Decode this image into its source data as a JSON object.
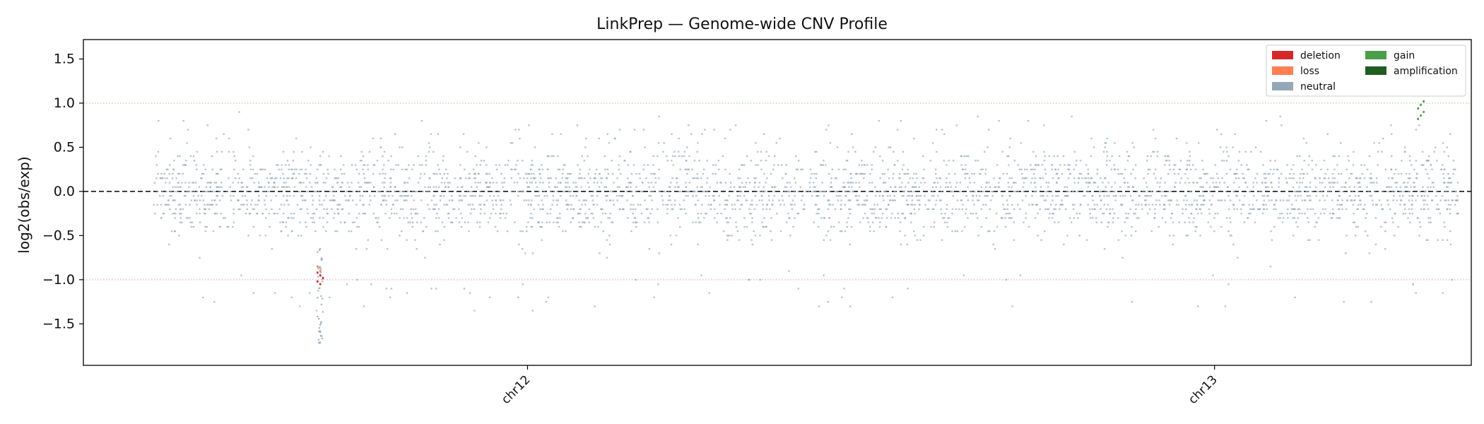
{
  "chart_data": {
    "type": "scatter",
    "title": "LinkPrep — Genome-wide CNV Profile",
    "ylabel": "log2(obs/exp)",
    "xlabel": "",
    "ylim": [
      -1.97,
      1.72
    ],
    "yticks": [
      1.5,
      1.0,
      0.5,
      0.0,
      -0.5,
      -1.0,
      -1.5
    ],
    "ytick_labels": [
      "1.5",
      "1.0",
      "0.5",
      "0.0",
      "−0.5",
      "−1.0",
      "−1.5"
    ],
    "xticks": [
      {
        "label": "chr12",
        "position": 0.32
      },
      {
        "label": "chr13",
        "position": 0.815
      }
    ],
    "reference_lines": [
      {
        "y": 0.0,
        "style": "dashed",
        "color": "#000000"
      },
      {
        "y": 1.0,
        "style": "dotted",
        "color": "#8fd18f"
      },
      {
        "y": -1.0,
        "style": "dotted",
        "color": "#e89999"
      }
    ],
    "grid": false,
    "legend_position": "top-right",
    "legend": [
      {
        "name": "deletion",
        "color": "#d62728"
      },
      {
        "name": "loss",
        "color": "#ff7f50"
      },
      {
        "name": "neutral",
        "color": "#94a8b8"
      },
      {
        "name": "gain",
        "color": "#4a9e4a"
      },
      {
        "name": "amplification",
        "color": "#1e5e1e"
      }
    ],
    "series": [
      {
        "name": "neutral",
        "x_range": [
          0.05,
          0.99
        ],
        "y_center": 0.0,
        "y_spread": 0.45
      },
      {
        "name": "deletion",
        "x_range": [
          0.168,
          0.172
        ],
        "y_values": [
          -0.92,
          -0.95,
          -0.98,
          -1.02,
          -1.05
        ]
      },
      {
        "name": "loss",
        "x_range": [
          0.168,
          0.172
        ],
        "y_values": [
          -0.85,
          -0.9
        ]
      },
      {
        "name": "gain",
        "x_range": [
          0.961,
          0.965
        ],
        "y_values": [
          0.82,
          0.86,
          0.9,
          0.94,
          0.98,
          1.02
        ]
      },
      {
        "name": "amplification",
        "x_range": [
          0.961,
          0.965
        ],
        "y_values": []
      }
    ]
  }
}
